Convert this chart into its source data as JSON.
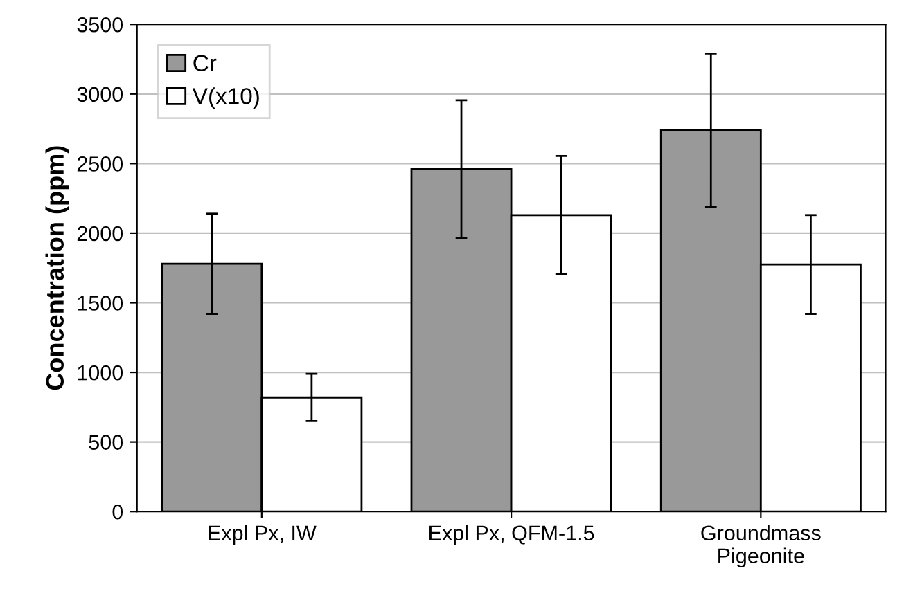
{
  "chart_data": {
    "type": "bar",
    "ylabel": "Concentration (ppm)",
    "categories": [
      "Expl Px, IW",
      "Expl Px, QFM-1.5",
      "Groundmass\nPigeonite"
    ],
    "series": [
      {
        "name": "Cr",
        "color": "#999999",
        "values": [
          1780,
          2460,
          2740
        ],
        "errors": [
          360,
          495,
          550
        ]
      },
      {
        "name": "V(x10)",
        "color": "#ffffff",
        "values": [
          820,
          2130,
          1775
        ],
        "errors": [
          170,
          425,
          355
        ]
      }
    ],
    "ylim": [
      0,
      3500
    ],
    "yticks": [
      0,
      500,
      1000,
      1500,
      2000,
      2500,
      3000,
      3500
    ],
    "grid": "y",
    "legend": "top left"
  }
}
